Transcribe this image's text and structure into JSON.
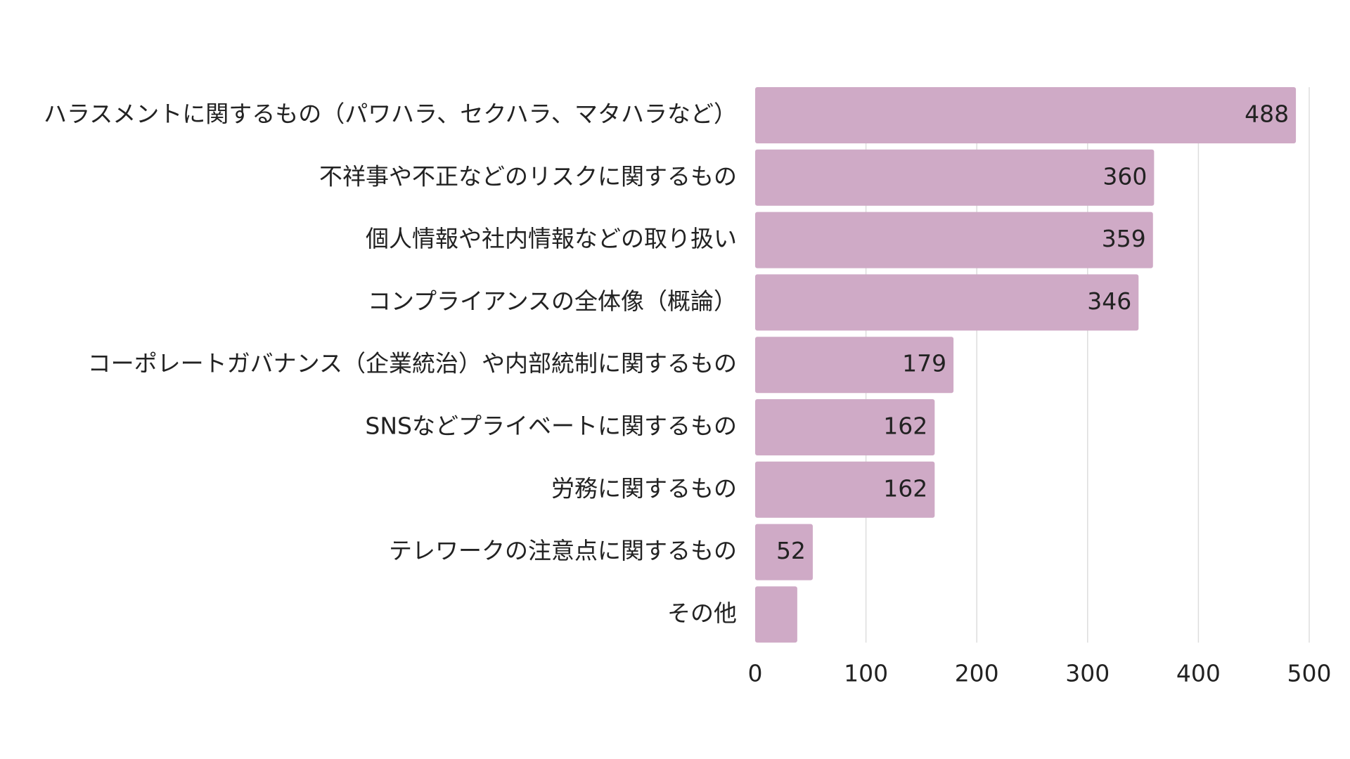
{
  "chart_data": {
    "type": "bar",
    "orientation": "horizontal",
    "categories": [
      "ハラスメントに関するもの（パワハラ、セクハラ、マタハラなど）",
      "不祥事や不正などのリスクに関するもの",
      "個人情報や社内情報などの取り扱い",
      "コンプライアンスの全体像（概論）",
      "コーポレートガバナンス（企業統治）や内部統制に関するもの",
      "SNSなどプライベートに関するもの",
      "労務に関するもの",
      "テレワークの注意点に関するもの",
      "その他"
    ],
    "values": [
      488,
      360,
      359,
      346,
      179,
      162,
      162,
      52,
      38
    ],
    "data_labels": [
      "488",
      "360",
      "359",
      "346",
      "179",
      "162",
      "162",
      "52",
      ""
    ],
    "title": "",
    "xlabel": "",
    "ylabel": "",
    "xlim": [
      0,
      500
    ],
    "ticks": [
      "0",
      "100",
      "200",
      "300",
      "400",
      "500"
    ],
    "grid": true,
    "legend": "none",
    "colors": {
      "bar": "#cfaac6",
      "grid": "#dddddd",
      "text": "#222222"
    }
  }
}
